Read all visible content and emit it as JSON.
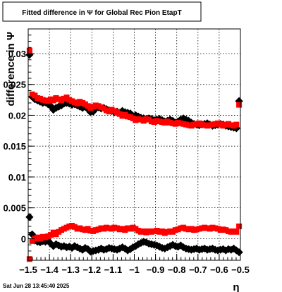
{
  "chart_data": {
    "type": "scatter",
    "title": "Fitted difference in  Ψ  for Global Rec Pion EtapT",
    "xlabel": "η",
    "ylabel": "difference in  Ψ",
    "xlim": [
      -1.5,
      -0.5
    ],
    "ylim": [
      -0.0035,
      0.034
    ],
    "grid": true,
    "xticks": [
      -1.5,
      -1.4,
      -1.3,
      -1.2,
      -1.1,
      -1.0,
      -0.9,
      -0.8,
      -0.7,
      -0.6,
      -0.5
    ],
    "xtick_labels": [
      "−1.5",
      "−1.4",
      "−1.3",
      "−1.2",
      "−1.1",
      "−1",
      "−0.9",
      "−0.8",
      "−0.7",
      "−0.6",
      "−0.5"
    ],
    "yticks": [
      0,
      0.005,
      0.01,
      0.015,
      0.02,
      0.025,
      0.03
    ],
    "ytick_labels": [
      "0",
      "0.005",
      "0.01",
      "0.015",
      "0.02",
      "0.025",
      "0.03"
    ],
    "x": [
      -1.4938,
      -1.4813,
      -1.4688,
      -1.4563,
      -1.4438,
      -1.4313,
      -1.4188,
      -1.4063,
      -1.3938,
      -1.3813,
      -1.3688,
      -1.3563,
      -1.3438,
      -1.3313,
      -1.3188,
      -1.3063,
      -1.2938,
      -1.2813,
      -1.2688,
      -1.2563,
      -1.2438,
      -1.2313,
      -1.2188,
      -1.2063,
      -1.1938,
      -1.1813,
      -1.1688,
      -1.1563,
      -1.1438,
      -1.1313,
      -1.1188,
      -1.1063,
      -1.0938,
      -1.0813,
      -1.0688,
      -1.0563,
      -1.0438,
      -1.0313,
      -1.0188,
      -1.0063,
      -0.9938,
      -0.9813,
      -0.9688,
      -0.9563,
      -0.9438,
      -0.9313,
      -0.9188,
      -0.9063,
      -0.8938,
      -0.8813,
      -0.8688,
      -0.8563,
      -0.8438,
      -0.8313,
      -0.8188,
      -0.8063,
      -0.7938,
      -0.7813,
      -0.7688,
      -0.7563,
      -0.7438,
      -0.7313,
      -0.7188,
      -0.7063,
      -0.6938,
      -0.6813,
      -0.6688,
      -0.6563,
      -0.6438,
      -0.6313,
      -0.6188,
      -0.6063,
      -0.5938,
      -0.5813,
      -0.5688,
      -0.5563,
      -0.5438,
      -0.5313,
      -0.5188,
      -0.5063
    ],
    "series": [
      {
        "color": "#000000",
        "upper": [
          0.0298,
          0.023,
          0.0226,
          0.0224,
          0.0222,
          0.022,
          0.0221,
          0.0218,
          0.0215,
          0.0209,
          0.0212,
          0.0214,
          0.0216,
          0.0219,
          0.022,
          0.0219,
          0.0217,
          0.0218,
          0.0216,
          0.0214,
          0.0212,
          0.0214,
          0.021,
          0.0205,
          0.0206,
          0.0211,
          0.0213,
          0.0211,
          0.0212,
          0.021,
          0.0208,
          0.0207,
          0.0205,
          0.0206,
          0.0204,
          0.0207,
          0.0205,
          0.0204,
          0.0203,
          0.0199,
          0.02,
          0.0198,
          0.0196,
          0.0195,
          0.0194,
          0.0195,
          0.0194,
          0.0192,
          0.0193,
          0.0194,
          0.0192,
          0.019,
          0.0191,
          0.0193,
          0.0191,
          0.0188,
          0.019,
          0.0193,
          0.0195,
          0.0193,
          0.0191,
          0.0188,
          0.0186,
          0.0185,
          0.0184,
          0.0185,
          0.0186,
          0.0187,
          0.0185,
          0.0183,
          0.0184,
          0.0185,
          0.0186,
          0.0185,
          0.0183,
          0.0182,
          0.0181,
          0.018,
          0.0179,
          0.0223
        ],
        "lower": [
          0.0035,
          0.0007,
          -0.0003,
          -0.0005,
          -0.0006,
          -0.0004,
          -0.0005,
          -0.0003,
          -0.0008,
          -0.0012,
          -0.0009,
          -0.0011,
          -0.0013,
          -0.0012,
          -0.0014,
          -0.0013,
          -0.0015,
          -0.0012,
          -0.0014,
          -0.0016,
          -0.0018,
          -0.0015,
          -0.0017,
          -0.0021,
          -0.002,
          -0.0019,
          -0.0018,
          -0.0016,
          -0.0018,
          -0.0017,
          -0.0015,
          -0.0016,
          -0.0017,
          -0.0018,
          -0.0016,
          -0.0014,
          -0.0016,
          -0.0019,
          -0.0017,
          -0.0014,
          -0.0012,
          -0.0009,
          -0.0007,
          -0.0005,
          -0.0006,
          -0.0008,
          -0.0009,
          -0.001,
          -0.0011,
          -0.0013,
          -0.0015,
          -0.0016,
          -0.0014,
          -0.0012,
          -0.001,
          -0.0012,
          -0.0013,
          -0.0011,
          -0.0014,
          -0.0016,
          -0.0017,
          -0.0018,
          -0.0017,
          -0.0016,
          -0.0018,
          -0.0017,
          -0.0016,
          -0.0018,
          -0.0017,
          -0.0016,
          -0.0018,
          -0.0019,
          -0.0018,
          -0.0017,
          -0.0019,
          -0.0017,
          -0.0018,
          -0.0016,
          -0.0019,
          -0.0022
        ]
      },
      {
        "color": "#ff0000",
        "upper": [
          0.0305,
          0.0234,
          0.0232,
          0.0228,
          0.0227,
          0.0225,
          0.0224,
          0.0223,
          0.0226,
          0.0224,
          0.0228,
          0.0226,
          0.0224,
          0.0227,
          0.0229,
          0.0225,
          0.0223,
          0.0221,
          0.0219,
          0.0222,
          0.022,
          0.0218,
          0.0215,
          0.0212,
          0.0214,
          0.0216,
          0.0215,
          0.0213,
          0.0211,
          0.0208,
          0.0206,
          0.0209,
          0.0207,
          0.0205,
          0.0202,
          0.0199,
          0.0201,
          0.0198,
          0.0197,
          0.0195,
          0.0192,
          0.0194,
          0.0193,
          0.0191,
          0.0194,
          0.0193,
          0.019,
          0.0189,
          0.0191,
          0.019,
          0.0189,
          0.0188,
          0.019,
          0.0188,
          0.0187,
          0.0186,
          0.0188,
          0.0187,
          0.0186,
          0.0185,
          0.0184,
          0.0183,
          0.0185,
          0.0186,
          0.0187,
          0.0185,
          0.0184,
          0.0183,
          0.0184,
          0.0185,
          0.0186,
          0.0187,
          0.0185,
          0.0183,
          0.0185,
          0.0186,
          0.0184,
          0.0183,
          0.0185,
          0.0217
        ],
        "lower": [
          -0.0033,
          -0.0004,
          0.0,
          0.0002,
          0.0,
          0.0003,
          0.0002,
          0.0004,
          0.0006,
          0.001,
          0.0007,
          0.0011,
          0.0014,
          0.0016,
          0.0018,
          0.002,
          0.0021,
          0.0019,
          0.0016,
          0.0017,
          0.0015,
          0.0014,
          0.0016,
          0.0013,
          0.0012,
          0.0014,
          0.0015,
          0.0017,
          0.0016,
          0.0018,
          0.0017,
          0.0016,
          0.0018,
          0.0017,
          0.0015,
          0.0016,
          0.0014,
          0.0017,
          0.0016,
          0.0018,
          0.0016,
          0.0013,
          0.0011,
          0.0012,
          0.001,
          0.0012,
          0.0011,
          0.0012,
          0.0013,
          0.0011,
          0.0012,
          0.0009,
          0.0011,
          0.0012,
          0.0011,
          0.0014,
          0.0015,
          0.0017,
          0.0018,
          0.0016,
          0.0015,
          0.0016,
          0.0014,
          0.0015,
          0.0016,
          0.0017,
          0.0018,
          0.0017,
          0.0016,
          0.0018,
          0.0017,
          0.0016,
          0.0014,
          0.0015,
          0.0014,
          0.0012,
          0.0011,
          0.0012,
          0.0011,
          0.002
        ]
      }
    ]
  },
  "footer": {
    "timestamp": "Sat Jun 28 13:45:40 2025"
  }
}
